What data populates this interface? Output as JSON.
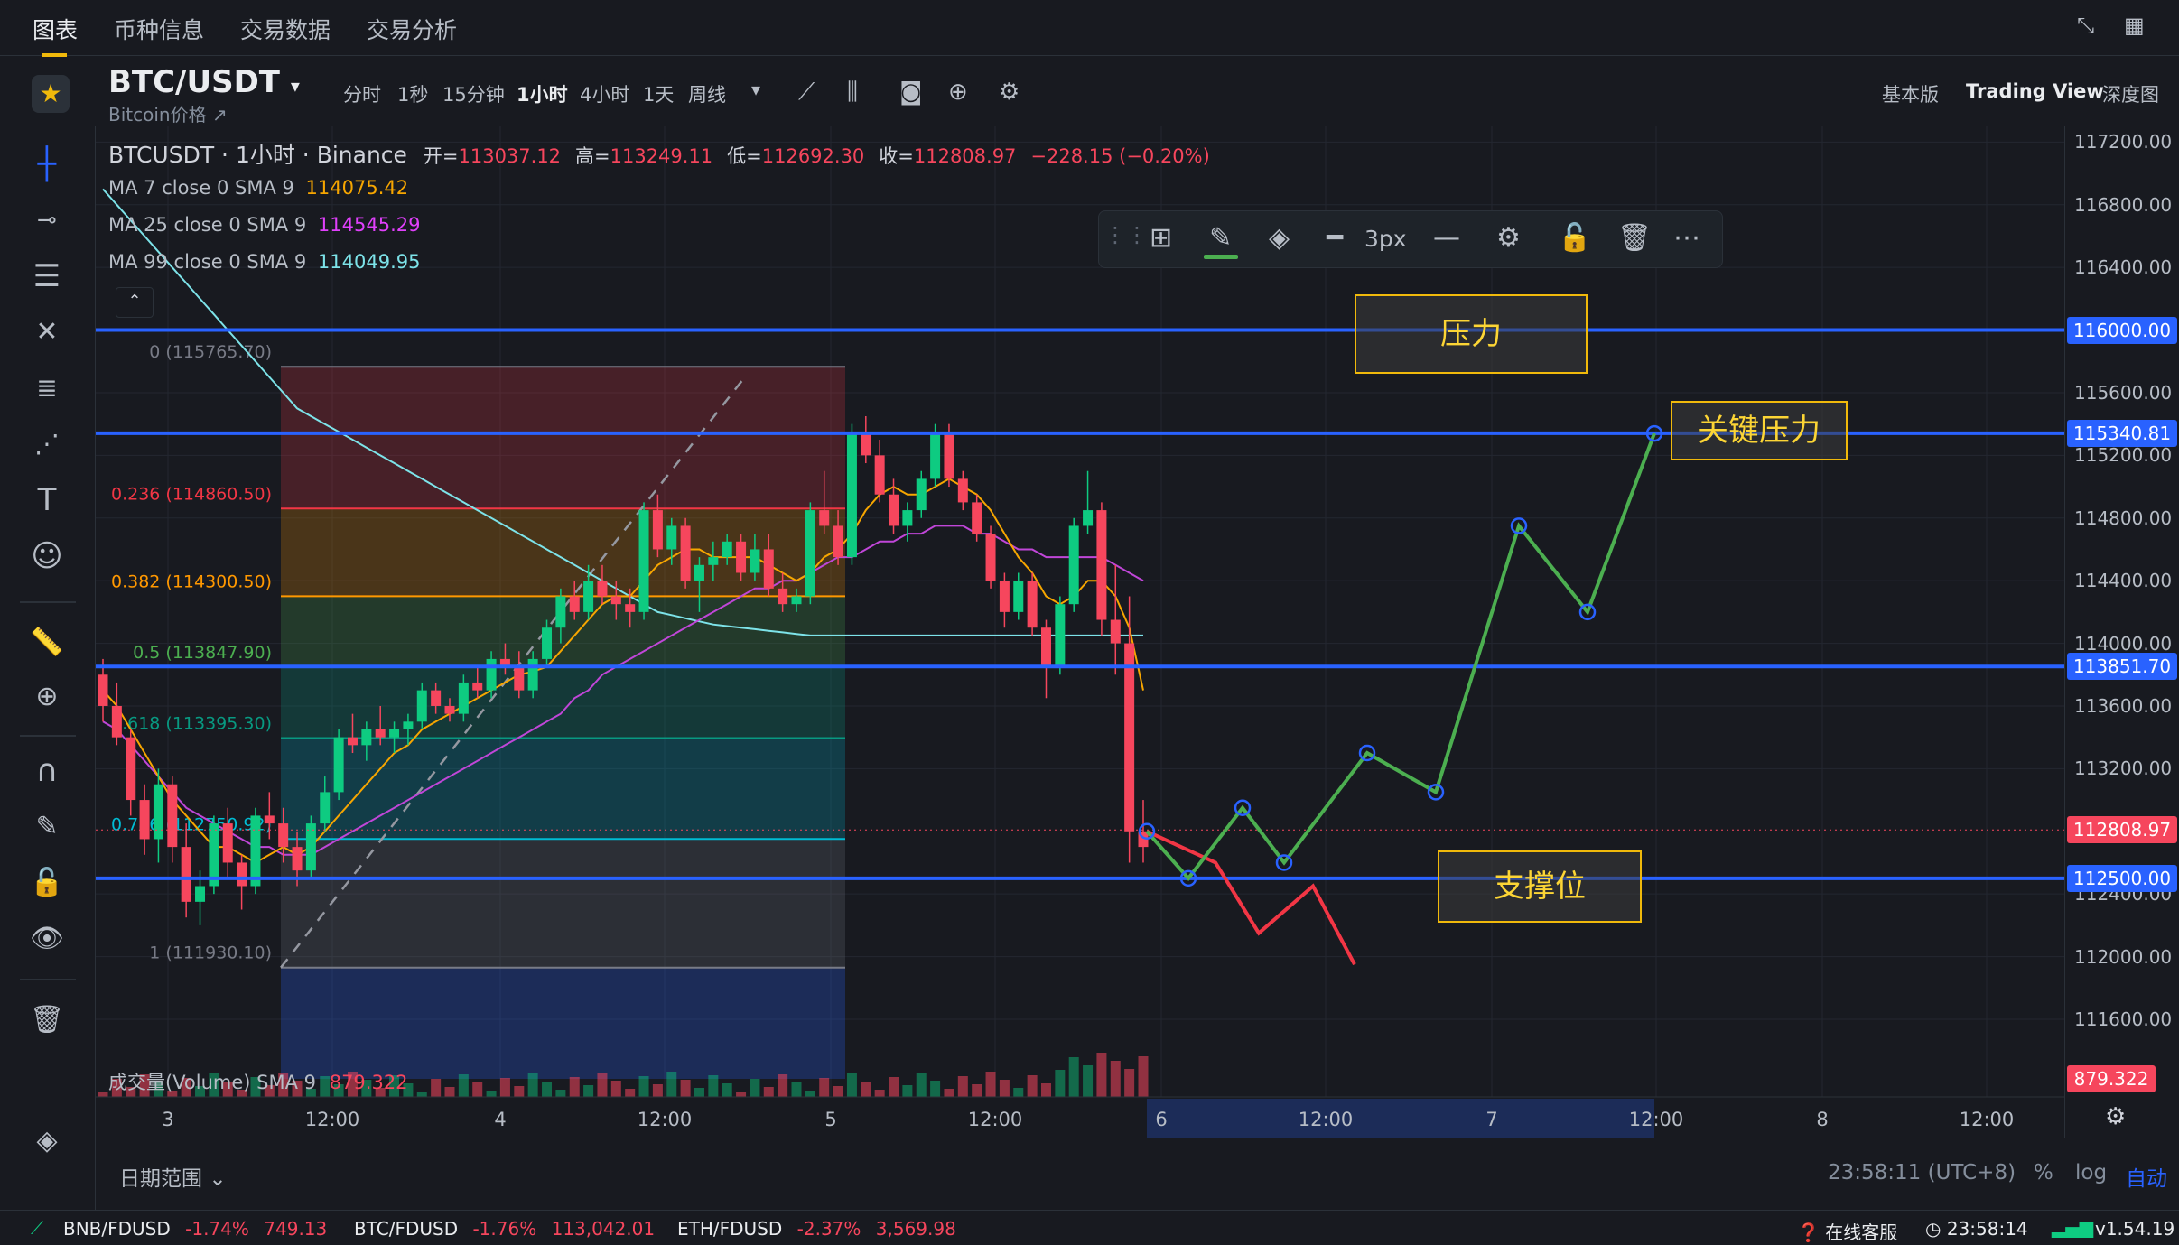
{
  "top_tabs": [
    "图表",
    "币种信息",
    "交易数据",
    "交易分析"
  ],
  "header": {
    "symbol": "BTC/USDT",
    "subtitle": "Bitcoin价格 ↗",
    "timeframes": [
      "分时",
      "1秒",
      "15分钟",
      "1小时",
      "4小时",
      "1天",
      "周线"
    ],
    "active_timeframe": "1小时",
    "views": [
      "基本版",
      "Trading View",
      "深度图"
    ],
    "active_view": "Trading View"
  },
  "legend": {
    "title": "BTCUSDT · 1小时 · Binance",
    "ohlc_open_label": "开=",
    "ohlc_open": "113037.12",
    "ohlc_high_label": "高=",
    "ohlc_high": "113249.11",
    "ohlc_low_label": "低=",
    "ohlc_low": "112692.30",
    "ohlc_close_label": "收=",
    "ohlc_close": "112808.97",
    "change": "−228.15 (−0.20%)",
    "ma7_label": "MA 7 close 0 SMA 9",
    "ma7_value": "114075.42",
    "ma25_label": "MA 25 close 0 SMA 9",
    "ma25_value": "114545.29",
    "ma99_label": "MA 99 close 0 SMA 9",
    "ma99_value": "114049.95"
  },
  "floating_toolbar": {
    "width_label": "3px"
  },
  "fib_levels": [
    {
      "label": "0 (115765.70)",
      "price": 115765.7,
      "color": "#787b86"
    },
    {
      "label": "0.236 (114860.50)",
      "price": 114860.5,
      "color": "#f23645"
    },
    {
      "label": "0.382 (114300.50)",
      "price": 114300.5,
      "color": "#ff9800"
    },
    {
      "label": "0.5 (113847.90)",
      "price": 113847.9,
      "color": "#4caf50"
    },
    {
      "label": "0.618 (113395.30)",
      "price": 113395.3,
      "color": "#089981"
    },
    {
      "label": "0.786 (112750.92)",
      "price": 112750.92,
      "color": "#00bcd4"
    },
    {
      "label": "1 (111930.10)",
      "price": 111930.1,
      "color": "#787b86"
    }
  ],
  "horizontal_lines": [
    {
      "price": 116000.0,
      "label": "116000.00"
    },
    {
      "price": 115340.81,
      "label": "115340.81"
    },
    {
      "price": 113851.7,
      "label": "113851.70"
    },
    {
      "price": 112500.0,
      "label": "112500.00"
    }
  ],
  "current_price": {
    "price": 112808.97,
    "label": "112808.97",
    "color": "#f6465d"
  },
  "annotations": [
    "压力",
    "关键压力",
    "支撑位"
  ],
  "price_ticks": [
    "117200.00",
    "116800.00",
    "116400.00",
    "115600.00",
    "115200.00",
    "114800.00",
    "114400.00",
    "114000.00",
    "113600.00",
    "113200.00",
    "112400.00",
    "112000.00",
    "111600.00"
  ],
  "volume": {
    "label": "成交量(Volume) SMA 9",
    "value": "879.322",
    "badge": "879.322"
  },
  "time_ticks": [
    "3",
    "12:00",
    "4",
    "12:00",
    "5",
    "12:00",
    "6",
    "12:00",
    "7",
    "12:00",
    "8",
    "12:00"
  ],
  "footer": {
    "date_range": "日期范围",
    "clock": "23:58:11 (UTC+8)",
    "percent": "%",
    "log": "log",
    "auto": "自动"
  },
  "tickers": [
    {
      "pair": "BNB/FDUSD",
      "change": "-1.74%",
      "price": "749.13"
    },
    {
      "pair": "BTC/FDUSD",
      "change": "-1.76%",
      "price": "113,042.01"
    },
    {
      "pair": "ETH/FDUSD",
      "change": "-2.37%",
      "price": "3,569.98"
    }
  ],
  "status": {
    "support": "在线客服",
    "time": "23:58:14",
    "version": "v1.54.19"
  },
  "colors": {
    "up": "#0ecb81",
    "down": "#f6465d",
    "accent": "#f0b90b",
    "line_blue": "#2962ff",
    "projection_green": "#4caf50",
    "projection_red": "#f23645"
  },
  "chart_data": {
    "type": "candlestick",
    "price_range": [
      111450,
      117300
    ],
    "candles": [
      [
        113800,
        113900,
        113500,
        113600
      ],
      [
        113600,
        113750,
        113350,
        113400
      ],
      [
        113400,
        113450,
        112900,
        113000
      ],
      [
        113000,
        113100,
        112650,
        112750
      ],
      [
        112750,
        113200,
        112600,
        113100
      ],
      [
        113100,
        113150,
        112600,
        112700
      ],
      [
        112700,
        112850,
        112250,
        112350
      ],
      [
        112350,
        112550,
        112200,
        112450
      ],
      [
        112450,
        112900,
        112400,
        112850
      ],
      [
        112850,
        112950,
        112500,
        112600
      ],
      [
        112600,
        112650,
        112300,
        112450
      ],
      [
        112450,
        112950,
        112400,
        112900
      ],
      [
        112900,
        113050,
        112750,
        112850
      ],
      [
        112850,
        112950,
        112600,
        112700
      ],
      [
        112700,
        112800,
        112450,
        112550
      ],
      [
        112550,
        112900,
        112500,
        112850
      ],
      [
        112850,
        113150,
        112800,
        113050
      ],
      [
        113050,
        113450,
        113000,
        113400
      ],
      [
        113400,
        113550,
        113300,
        113350
      ],
      [
        113350,
        113500,
        113250,
        113450
      ],
      [
        113450,
        113600,
        113350,
        113400
      ],
      [
        113400,
        113500,
        113300,
        113450
      ],
      [
        113450,
        113550,
        113350,
        113500
      ],
      [
        113500,
        113750,
        113450,
        113700
      ],
      [
        113700,
        113750,
        113550,
        113600
      ],
      [
        113600,
        113650,
        113500,
        113550
      ],
      [
        113550,
        113800,
        113500,
        113750
      ],
      [
        113750,
        113850,
        113650,
        113700
      ],
      [
        113700,
        113950,
        113650,
        113900
      ],
      [
        113900,
        114000,
        113800,
        113850
      ],
      [
        113850,
        113950,
        113650,
        113700
      ],
      [
        113700,
        113950,
        113650,
        113900
      ],
      [
        113900,
        114150,
        113850,
        114100
      ],
      [
        114100,
        114350,
        114000,
        114300
      ],
      [
        114300,
        114400,
        114150,
        114200
      ],
      [
        114200,
        114500,
        114150,
        114400
      ],
      [
        114400,
        114500,
        114250,
        114300
      ],
      [
        114300,
        114400,
        114150,
        114250
      ],
      [
        114250,
        114350,
        114100,
        114200
      ],
      [
        114200,
        114900,
        114150,
        114850
      ],
      [
        114850,
        114950,
        114550,
        114600
      ],
      [
        114600,
        114800,
        114500,
        114750
      ],
      [
        114750,
        114800,
        114350,
        114400
      ],
      [
        114400,
        114550,
        114200,
        114500
      ],
      [
        114500,
        114650,
        114400,
        114550
      ],
      [
        114550,
        114700,
        114500,
        114650
      ],
      [
        114650,
        114700,
        114400,
        114450
      ],
      [
        114450,
        114700,
        114400,
        114600
      ],
      [
        114600,
        114700,
        114300,
        114350
      ],
      [
        114350,
        114450,
        114200,
        114250
      ],
      [
        114250,
        114350,
        114200,
        114300
      ],
      [
        114300,
        114900,
        114250,
        114850
      ],
      [
        114850,
        115100,
        114700,
        114750
      ],
      [
        114750,
        114850,
        114500,
        114550
      ],
      [
        114550,
        115400,
        114500,
        115350
      ],
      [
        115350,
        115450,
        115150,
        115200
      ],
      [
        115200,
        115300,
        114900,
        114950
      ],
      [
        114950,
        115050,
        114700,
        114750
      ],
      [
        114750,
        114900,
        114650,
        114850
      ],
      [
        114850,
        115100,
        114800,
        115050
      ],
      [
        115050,
        115400,
        115000,
        115350
      ],
      [
        115350,
        115400,
        115000,
        115050
      ],
      [
        115050,
        115100,
        114850,
        114900
      ],
      [
        114900,
        114950,
        114650,
        114700
      ],
      [
        114700,
        114750,
        114350,
        114400
      ],
      [
        114400,
        114450,
        114100,
        114200
      ],
      [
        114200,
        114450,
        114150,
        114400
      ],
      [
        114400,
        114450,
        114050,
        114100
      ],
      [
        114100,
        114150,
        113650,
        113850
      ],
      [
        113850,
        114300,
        113800,
        114250
      ],
      [
        114250,
        114800,
        114200,
        114750
      ],
      [
        114750,
        115100,
        114700,
        114850
      ],
      [
        114850,
        114900,
        114050,
        114150
      ],
      [
        114150,
        114500,
        113800,
        114000
      ],
      [
        114000,
        114300,
        112600,
        112800
      ],
      [
        112800,
        113000,
        112600,
        112700
      ]
    ],
    "ma7": [
      113700,
      113600,
      113450,
      113300,
      113150,
      113000,
      112900,
      112800,
      112700,
      112700,
      112650,
      112600,
      112650,
      112700,
      112650,
      112700,
      112800,
      112900,
      113000,
      113100,
      113200,
      113300,
      113350,
      113450,
      113500,
      113550,
      113600,
      113650,
      113700,
      113750,
      113800,
      113820,
      113850,
      113950,
      114050,
      114150,
      114250,
      114300,
      114300,
      114400,
      114500,
      114550,
      114600,
      114600,
      114550,
      114550,
      114550,
      114550,
      114500,
      114450,
      114400,
      114450,
      114550,
      114600,
      114700,
      114850,
      114950,
      115000,
      114950,
      114950,
      115000,
      115050,
      115000,
      114950,
      114850,
      114700,
      114550,
      114450,
      114300,
      114250,
      114300,
      114400,
      114400,
      114300,
      114100,
      113700
    ],
    "ma25": [
      113500,
      113450,
      113350,
      113250,
      113150,
      113050,
      112950,
      112900,
      112850,
      112800,
      112750,
      112700,
      112700,
      112650,
      112650,
      112650,
      112700,
      112750,
      112800,
      112850,
      112900,
      112950,
      113000,
      113050,
      113100,
      113150,
      113200,
      113250,
      113300,
      113350,
      113400,
      113450,
      113500,
      113550,
      113650,
      113700,
      113800,
      113850,
      113900,
      113950,
      114000,
      114050,
      114100,
      114150,
      114200,
      114250,
      114300,
      114350,
      114350,
      114400,
      114400,
      114450,
      114500,
      114550,
      114550,
      114600,
      114650,
      114650,
      114700,
      114700,
      114750,
      114750,
      114750,
      114700,
      114700,
      114650,
      114600,
      114600,
      114550,
      114550,
      114550,
      114550,
      114550,
      114500,
      114450,
      114400
    ],
    "ma99": [
      116900,
      116800,
      116700,
      116600,
      116500,
      116400,
      116300,
      116200,
      116100,
      116000,
      115900,
      115800,
      115700,
      115600,
      115500,
      115450,
      115400,
      115350,
      115300,
      115250,
      115200,
      115150,
      115100,
      115050,
      115000,
      114950,
      114900,
      114850,
      114800,
      114750,
      114700,
      114650,
      114600,
      114550,
      114500,
      114450,
      114400,
      114350,
      114300,
      114250,
      114200,
      114180,
      114160,
      114140,
      114120,
      114110,
      114100,
      114090,
      114080,
      114070,
      114060,
      114050,
      114050,
      114050,
      114050,
      114050,
      114050,
      114050,
      114050,
      114050,
      114050,
      114050,
      114050,
      114050,
      114050,
      114050,
      114050,
      114050,
      114050,
      114050,
      114050,
      114050,
      114050,
      114050,
      114050,
      114050
    ],
    "projection_green": [
      112800,
      112500,
      112950,
      112600,
      113300,
      113050,
      114750,
      114200,
      115340
    ],
    "projection_red": [
      112800,
      112600,
      112150,
      112450,
      111950
    ]
  }
}
